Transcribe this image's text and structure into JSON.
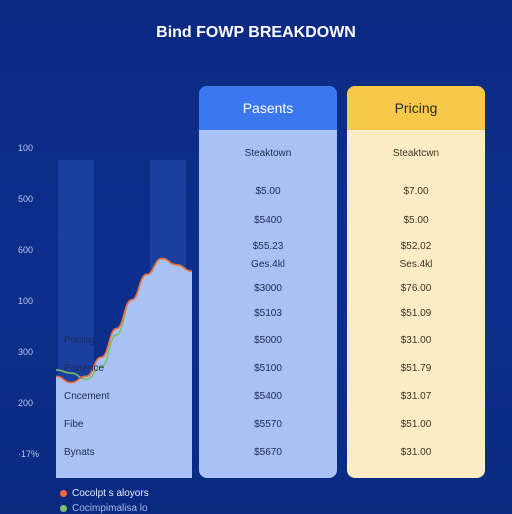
{
  "chart_data": {
    "type": "area",
    "title": "Bind FOWP BREAKDOWN",
    "y_ticks": [
      "100",
      "500",
      "600",
      "100",
      "300",
      "200",
      "·17%"
    ],
    "row_labels": [
      "Pricing",
      "Partence",
      "Cncement",
      "Fibe",
      "Bynats"
    ],
    "series": [
      {
        "name": "Cocolpt s aloyors",
        "color": "#f26b3a",
        "x": [
          0,
          1,
          2,
          3,
          4,
          5,
          6,
          7,
          8,
          9
        ],
        "values": [
          320,
          300,
          320,
          380,
          470,
          560,
          640,
          690,
          670,
          650
        ]
      },
      {
        "name": "",
        "color": "#7dc06a",
        "x": [
          0,
          1,
          2,
          3,
          4,
          5,
          6,
          7,
          8,
          9
        ],
        "values": [
          340,
          330,
          310,
          350,
          450,
          560,
          640,
          690,
          670,
          650
        ]
      }
    ],
    "ylim": [
      0,
      1000
    ],
    "grid": false
  },
  "table": {
    "columns": [
      {
        "header": "Pasents",
        "subheader": "Steaktown",
        "cells": [
          "$5.00",
          "$5400",
          "$55.23",
          "Ges.4kl",
          "$3000",
          "$5103",
          "$5000",
          "$5100",
          "$5400",
          "$5570",
          "$5670"
        ]
      },
      {
        "header": "Pricing",
        "subheader": "Steaktcwn",
        "cells": [
          "$7.00",
          "$5.00",
          "$52.02",
          "Ses.4kl",
          "$76.00",
          "$51.09",
          "$31.00",
          "$51.79",
          "$31.07",
          "$51.00",
          "$31.00"
        ]
      }
    ]
  },
  "legend": {
    "item1": "Cocolpt s aloyors",
    "item2": "Cocimpimalisa lo"
  },
  "colors": {
    "background": "#0d2f8c",
    "parts_header": "#3b78f0",
    "pricing_header": "#f7c84a",
    "area_fill": "#a9c1f4"
  }
}
